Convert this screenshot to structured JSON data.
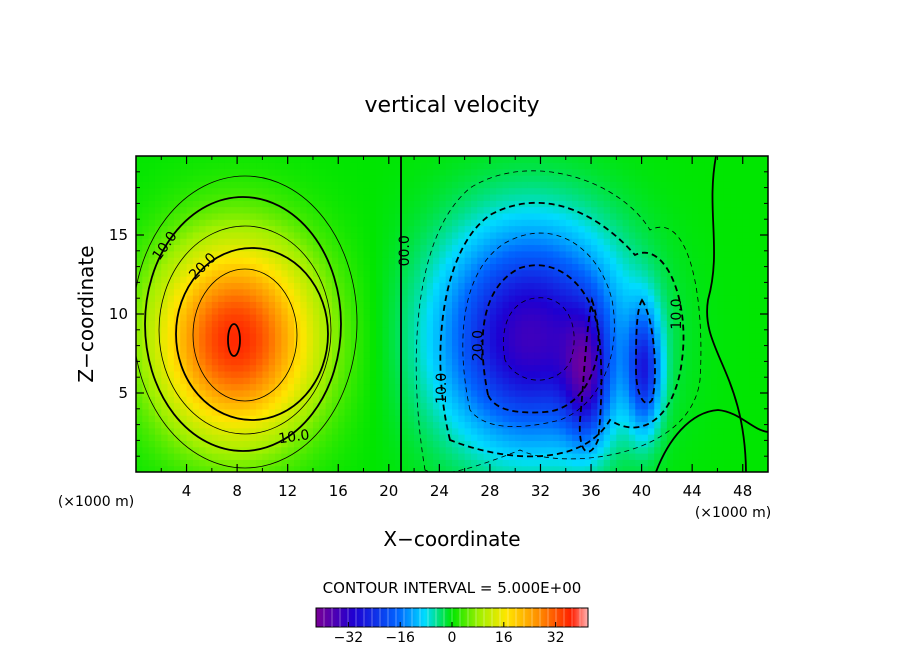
{
  "chart_data": {
    "type": "heatmap",
    "title": "vertical velocity",
    "xlabel": "X−coordinate",
    "ylabel": "Z−coordinate",
    "x_unit_left": "(×1000 m)",
    "x_unit_right": "(×1000 m)",
    "xlim": [
      0,
      50
    ],
    "ylim": [
      0,
      20
    ],
    "xticks": [
      4,
      8,
      12,
      16,
      20,
      24,
      28,
      32,
      36,
      40,
      44,
      48
    ],
    "yticks": [
      5,
      10,
      15
    ],
    "contour_interval_text": "CONTOUR INTERVAL = 5.000E+00",
    "contour_labels": [
      {
        "text": "10.0",
        "x": 2.3,
        "z": 14.3,
        "angle": -55
      },
      {
        "text": "20.0",
        "x": 5.3,
        "z": 13.0,
        "angle": -45
      },
      {
        "text": "10.0",
        "x": 12.5,
        "z": 2.2,
        "angle": -8
      },
      {
        "text": "00.0",
        "x": 21.3,
        "z": 14.0,
        "angle": -90
      },
      {
        "text": "10.0",
        "x": 24.2,
        "z": 5.3,
        "angle": -90
      },
      {
        "text": "20.0",
        "x": 27.1,
        "z": 8.0,
        "angle": -90
      },
      {
        "text": "10.0",
        "x": 42.8,
        "z": 10.0,
        "angle": -90
      }
    ],
    "cells": [
      {
        "name": "updraft",
        "x": 7.9,
        "z": 8.4,
        "amplitude": 36,
        "sx": 4.3,
        "sz": 4.2
      },
      {
        "name": "downdraft",
        "x": 31.2,
        "z": 8.6,
        "amplitude": -34,
        "sx": 4.8,
        "sz": 4.6
      },
      {
        "name": "downdraft-band",
        "x": 35.6,
        "z": 6.0,
        "amplitude": -20,
        "sx": 1.2,
        "sz": 2.8
      },
      {
        "name": "downdraft-band",
        "x": 40.2,
        "z": 6.5,
        "amplitude": -22,
        "sx": 0.9,
        "sz": 2.6
      }
    ],
    "colorbar": {
      "range": [
        -42,
        42
      ],
      "ticks": [
        -32,
        -16,
        0,
        16,
        32
      ],
      "tick_labels": [
        "−32",
        "−16",
        "0",
        "16",
        "32"
      ]
    }
  }
}
